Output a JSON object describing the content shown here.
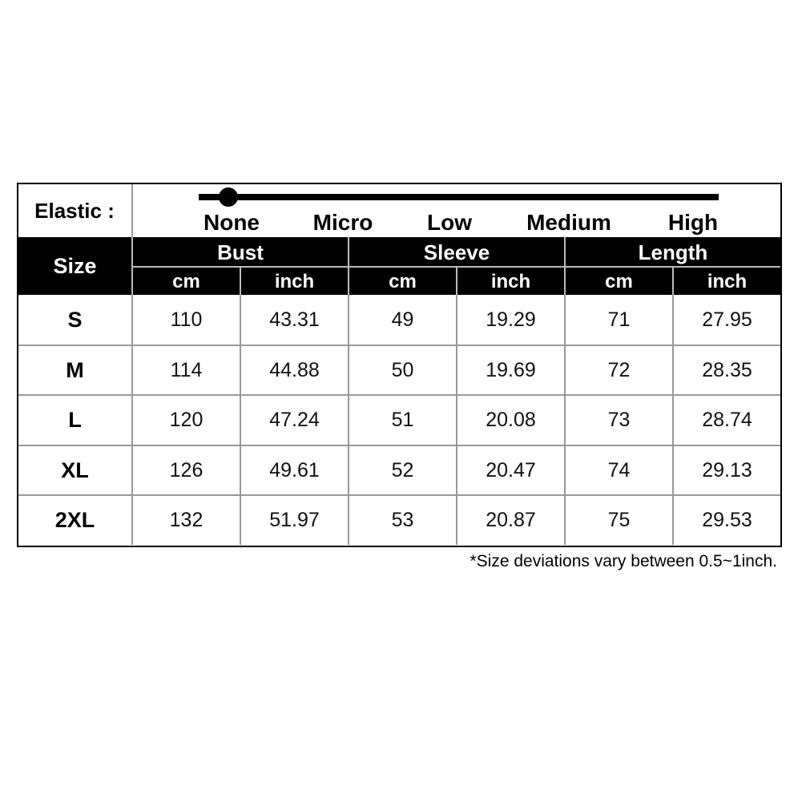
{
  "elastic": {
    "label": "Elastic :",
    "levels": [
      "None",
      "Micro",
      "Low",
      "Medium",
      "High"
    ],
    "selected_level": "None"
  },
  "header": {
    "size": "Size",
    "groups": [
      "Bust",
      "Sleeve",
      "Length"
    ],
    "units": [
      "cm",
      "inch",
      "cm",
      "inch",
      "cm",
      "inch"
    ]
  },
  "rows": [
    {
      "size": "S",
      "values": [
        "110",
        "43.31",
        "49",
        "19.29",
        "71",
        "27.95"
      ]
    },
    {
      "size": "M",
      "values": [
        "114",
        "44.88",
        "50",
        "19.69",
        "72",
        "28.35"
      ]
    },
    {
      "size": "L",
      "values": [
        "120",
        "47.24",
        "51",
        "20.08",
        "73",
        "28.74"
      ]
    },
    {
      "size": "XL",
      "values": [
        "126",
        "49.61",
        "52",
        "20.47",
        "74",
        "29.13"
      ]
    },
    {
      "size": "2XL",
      "values": [
        "132",
        "51.97",
        "53",
        "20.87",
        "75",
        "29.53"
      ]
    }
  ],
  "footnote": "*Size deviations vary between 0.5~1inch."
}
